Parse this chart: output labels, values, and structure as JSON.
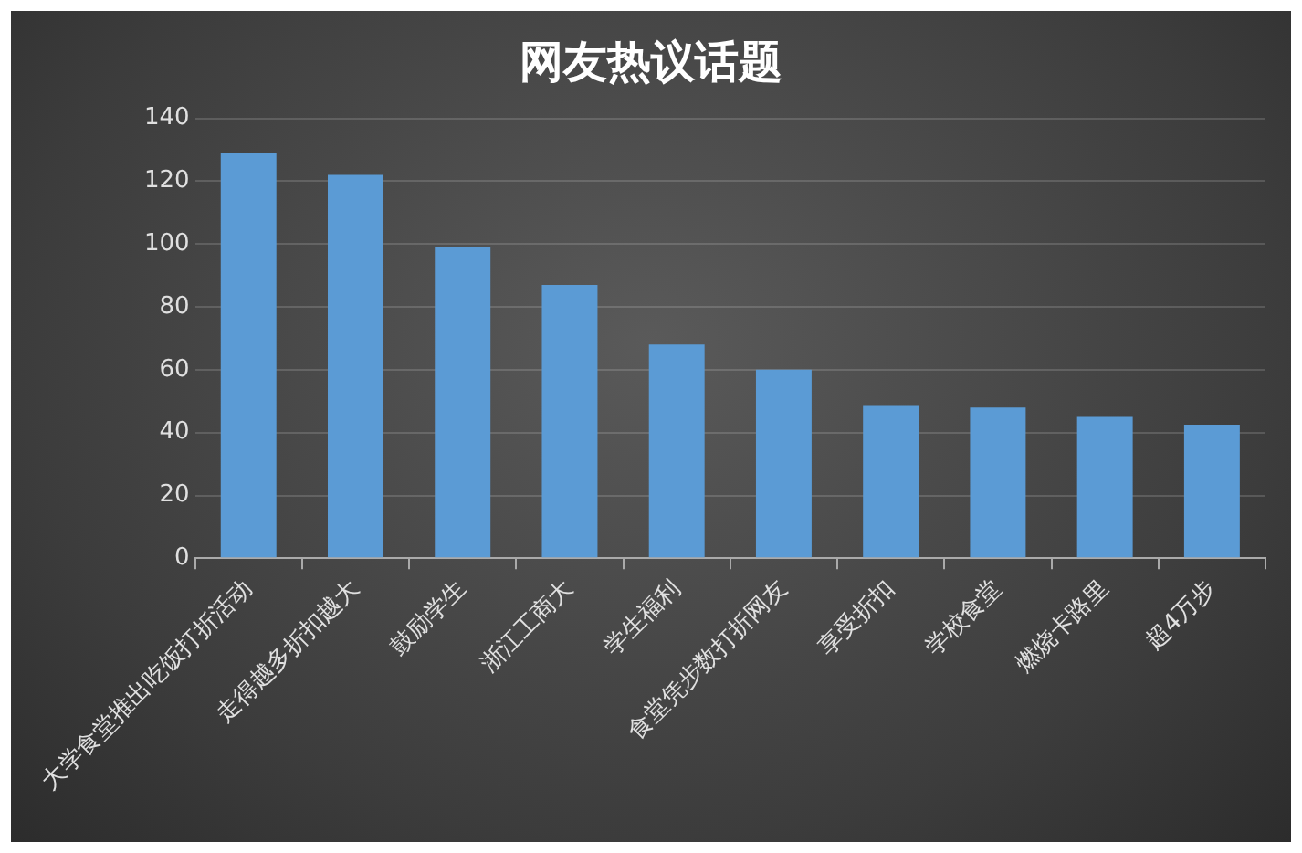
{
  "chart_data": {
    "type": "bar",
    "title": "网友热议话题",
    "categories": [
      "大学食堂推出吃饭打折活动",
      "走得越多折扣越大",
      "鼓励学生",
      "浙江工商大",
      "学生福利",
      "食堂凭步数打折网友",
      "享受折扣",
      "学校食堂",
      "燃烧卡路里",
      "超4万步"
    ],
    "values": [
      129,
      122,
      99,
      87,
      68,
      60,
      48.5,
      48,
      45,
      42.5
    ],
    "color": "#5b9bd5",
    "ylim": [
      0,
      140
    ],
    "yticks": [
      0,
      20,
      40,
      60,
      80,
      100,
      120,
      140
    ],
    "grid": "y",
    "legend": false
  }
}
